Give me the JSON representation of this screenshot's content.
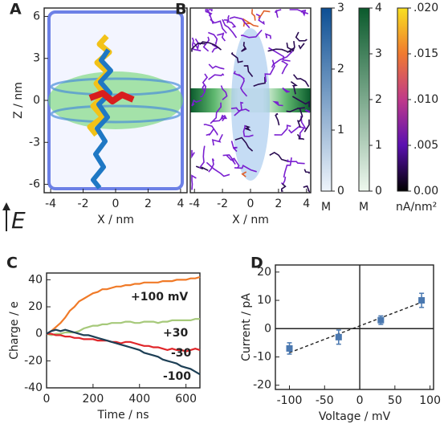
{
  "chart_data": [
    {
      "type": "image",
      "label": "A",
      "xlabel": "X / nm",
      "ylabel": "Z / nm",
      "xlim": [
        -4.4,
        4.4
      ],
      "xticks": [
        -4,
        -2,
        0,
        2,
        4
      ],
      "ylim": [
        -6.6,
        6.6
      ],
      "yticks": [
        -6,
        -3,
        0,
        3,
        6
      ],
      "annotation": "E"
    },
    {
      "type": "streamline",
      "label": "B",
      "xlabel": "X / nm",
      "xlim": [
        -4.3,
        4.3
      ],
      "xticks": [
        -4,
        -2,
        0,
        2,
        4
      ],
      "colorbars": [
        {
          "unit": "M",
          "lim": [
            0,
            3
          ],
          "ticks": [
            0,
            1,
            2,
            3
          ],
          "colors": [
            "#eef4fb",
            "#0d4f94"
          ]
        },
        {
          "unit": "M",
          "lim": [
            0,
            4
          ],
          "ticks": [
            0,
            1,
            2,
            3,
            4
          ],
          "colors": [
            "#eef8ee",
            "#0a5a2c"
          ]
        },
        {
          "unit": "nA/nm²",
          "lim": [
            0,
            0.02
          ],
          "ticks": [
            {
              "value": 0,
              "label": "0.00"
            },
            {
              "value": 0.005,
              "label": ".005"
            },
            {
              "value": 0.01,
              "label": ".010"
            },
            {
              "value": 0.015,
              "label": ".015"
            },
            {
              "value": 0.02,
              "label": ".020"
            }
          ],
          "colors": [
            "#000000",
            "#5a10b0",
            "#c03a8a",
            "#f07a30",
            "#f8e020"
          ]
        }
      ]
    },
    {
      "type": "line",
      "label": "C",
      "xlabel": "Time / ns",
      "ylabel": "Charge / e",
      "xlim": [
        0,
        660
      ],
      "xticks": [
        0,
        200,
        400,
        600
      ],
      "ylim": [
        -40,
        45
      ],
      "yticks": [
        -40,
        -20,
        0,
        20,
        40
      ],
      "x": [
        0,
        20,
        40,
        60,
        80,
        100,
        120,
        140,
        160,
        180,
        200,
        220,
        240,
        260,
        280,
        300,
        320,
        340,
        360,
        380,
        400,
        420,
        440,
        460,
        480,
        500,
        520,
        540,
        560,
        580,
        600,
        620,
        640,
        660
      ],
      "series": [
        {
          "name": "+100 mV",
          "color": "#f07a28",
          "values": [
            0,
            2,
            5,
            8,
            12,
            17,
            20,
            24,
            26,
            28,
            30,
            31,
            33,
            33,
            34,
            35,
            35,
            36,
            36,
            37,
            37,
            38,
            38,
            38,
            38,
            39,
            39,
            39,
            40,
            40,
            40,
            41,
            41,
            42
          ]
        },
        {
          "name": "+30",
          "color": "#a6c97a",
          "values": [
            0,
            -1,
            0,
            0,
            1,
            1,
            1,
            2,
            4,
            5,
            6,
            6,
            7,
            7,
            8,
            8,
            8,
            9,
            9,
            8,
            8,
            9,
            9,
            9,
            8,
            9,
            9,
            10,
            10,
            10,
            10,
            10,
            11,
            11
          ]
        },
        {
          "name": "-30",
          "color": "#e0262a",
          "values": [
            0,
            0,
            -1,
            -1,
            -2,
            -2,
            -3,
            -3,
            -4,
            -4,
            -4,
            -5,
            -5,
            -5,
            -6,
            -6,
            -7,
            -6,
            -6,
            -7,
            -8,
            -9,
            -9,
            -10,
            -10,
            -11,
            -12,
            -11,
            -12,
            -12,
            -13,
            -12,
            -11,
            -12
          ]
        },
        {
          "name": "-100",
          "color": "#1d3f55",
          "values": [
            0,
            2,
            3,
            2,
            3,
            2,
            1,
            0,
            -1,
            -1,
            -2,
            -3,
            -4,
            -5,
            -6,
            -7,
            -8,
            -9,
            -10,
            -11,
            -12,
            -14,
            -15,
            -16,
            -17,
            -19,
            -20,
            -21,
            -22,
            -24,
            -25,
            -26,
            -28,
            -30
          ]
        }
      ]
    },
    {
      "type": "scatter",
      "label": "D",
      "xlabel": "Voltage / mV",
      "ylabel": "Current / pA",
      "xlim": [
        -120,
        105
      ],
      "xticks": [
        -100,
        -50,
        0,
        50,
        100
      ],
      "ylim": [
        -21.5,
        22.5
      ],
      "yticks": [
        -20,
        -10,
        0,
        10,
        20
      ],
      "x": [
        -100,
        -30,
        30,
        88
      ],
      "values": [
        -7,
        -3,
        3,
        10
      ],
      "errors": [
        2,
        2.5,
        1.5,
        2.5
      ],
      "color": "#4a78b0",
      "fit": {
        "x": [
          -100,
          90
        ],
        "y": [
          -8.5,
          9.5
        ]
      }
    }
  ]
}
